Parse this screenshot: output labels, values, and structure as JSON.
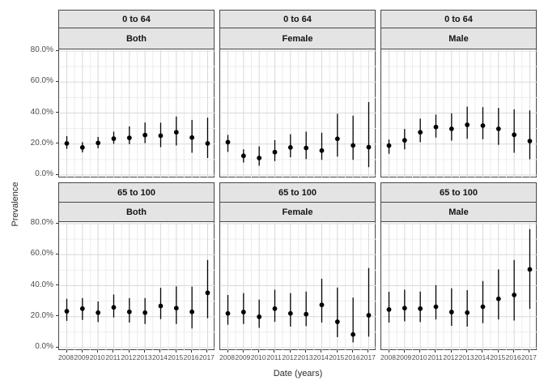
{
  "figure": {
    "y_axis": {
      "title": "Prevalence",
      "tick_labels": [
        "80.0%",
        "60.0%",
        "40.0%",
        "20.0%",
        "0.0%"
      ],
      "tick_values": [
        80,
        60,
        40,
        20,
        0
      ]
    },
    "x_axis": {
      "title": "Date (years)",
      "tick_labels": [
        "2008",
        "2009",
        "2010",
        "2011",
        "2012",
        "2013",
        "2014",
        "2015",
        "2016",
        "2017"
      ]
    },
    "colors": {
      "strip_fill": "#e4e4e4",
      "panel_border": "#474747",
      "grid_major": "#d9d9d9",
      "grid_minor": "#ededed",
      "point": "#000000",
      "axis_text": "#4d4d4d"
    }
  },
  "chart_data": {
    "type": "pointrange",
    "title": "",
    "xlabel": "Date (years)",
    "ylabel": "Prevalence",
    "units": "percent",
    "ylim": [
      0,
      80
    ],
    "grid": true,
    "x": [
      2008,
      2009,
      2010,
      2011,
      2012,
      2013,
      2014,
      2015,
      2016,
      2017
    ],
    "facet_rows": [
      "0 to 64",
      "65 to 100"
    ],
    "facet_cols": [
      "Both",
      "Female",
      "Male"
    ],
    "panels": [
      {
        "row": "0 to 64",
        "col": "Both",
        "estimate": [
          20.4,
          17.8,
          20.7,
          23.5,
          24.0,
          25.8,
          25.4,
          27.6,
          24.2,
          20.4
        ],
        "lower": [
          16.9,
          14.6,
          17.3,
          20.2,
          19.9,
          20.6,
          18.0,
          19.1,
          14.4,
          11.0
        ],
        "upper": [
          25.1,
          21.2,
          24.6,
          28.0,
          31.4,
          33.9,
          33.8,
          37.8,
          35.6,
          37.0
        ]
      },
      {
        "row": "0 to 64",
        "col": "Female",
        "estimate": [
          21.2,
          12.4,
          11.0,
          14.8,
          17.8,
          17.5,
          15.8,
          23.4,
          19.1,
          18.0
        ],
        "lower": [
          14.9,
          8.1,
          6.0,
          9.0,
          11.5,
          10.3,
          9.8,
          11.9,
          9.8,
          5.1
        ],
        "upper": [
          25.9,
          16.6,
          18.5,
          22.5,
          26.3,
          28.0,
          27.3,
          39.5,
          38.3,
          47.1
        ]
      },
      {
        "row": "0 to 64",
        "col": "Male",
        "estimate": [
          19.0,
          22.4,
          27.6,
          31.0,
          29.8,
          32.4,
          31.9,
          29.8,
          26.0,
          21.9
        ],
        "lower": [
          13.7,
          16.6,
          21.2,
          24.2,
          22.2,
          23.4,
          23.1,
          19.5,
          14.4,
          10.2
        ],
        "upper": [
          22.9,
          29.7,
          36.4,
          39.0,
          39.8,
          44.1,
          43.8,
          43.3,
          42.4,
          41.7
        ]
      },
      {
        "row": "65 to 100",
        "col": "Both",
        "estimate": [
          23.5,
          25.2,
          22.6,
          26.0,
          23.1,
          22.6,
          26.9,
          25.5,
          23.1,
          35.4
        ],
        "lower": [
          17.3,
          17.9,
          16.5,
          19.5,
          16.2,
          15.3,
          18.4,
          15.3,
          12.4,
          19.0
        ],
        "upper": [
          31.5,
          32.0,
          29.8,
          34.3,
          32.0,
          32.0,
          38.6,
          39.6,
          39.4,
          56.6
        ]
      },
      {
        "row": "65 to 100",
        "col": "Female",
        "estimate": [
          22.1,
          23.0,
          19.9,
          25.2,
          22.1,
          21.6,
          27.6,
          16.7,
          8.5,
          20.9
        ],
        "lower": [
          14.8,
          15.3,
          12.8,
          16.7,
          13.6,
          13.9,
          16.2,
          6.8,
          3.4,
          7.1
        ],
        "upper": [
          34.0,
          35.2,
          31.0,
          37.4,
          35.2,
          36.2,
          44.5,
          38.8,
          32.3,
          51.4
        ]
      },
      {
        "row": "65 to 100",
        "col": "Male",
        "estimate": [
          24.6,
          25.5,
          25.2,
          26.4,
          23.0,
          22.6,
          26.4,
          31.5,
          34.0,
          50.5
        ],
        "lower": [
          16.2,
          17.0,
          16.5,
          18.2,
          14.1,
          13.6,
          15.8,
          18.2,
          17.5,
          25.0
        ],
        "upper": [
          36.1,
          37.4,
          36.2,
          40.3,
          38.3,
          37.1,
          43.0,
          50.5,
          56.6,
          76.5
        ]
      }
    ]
  }
}
